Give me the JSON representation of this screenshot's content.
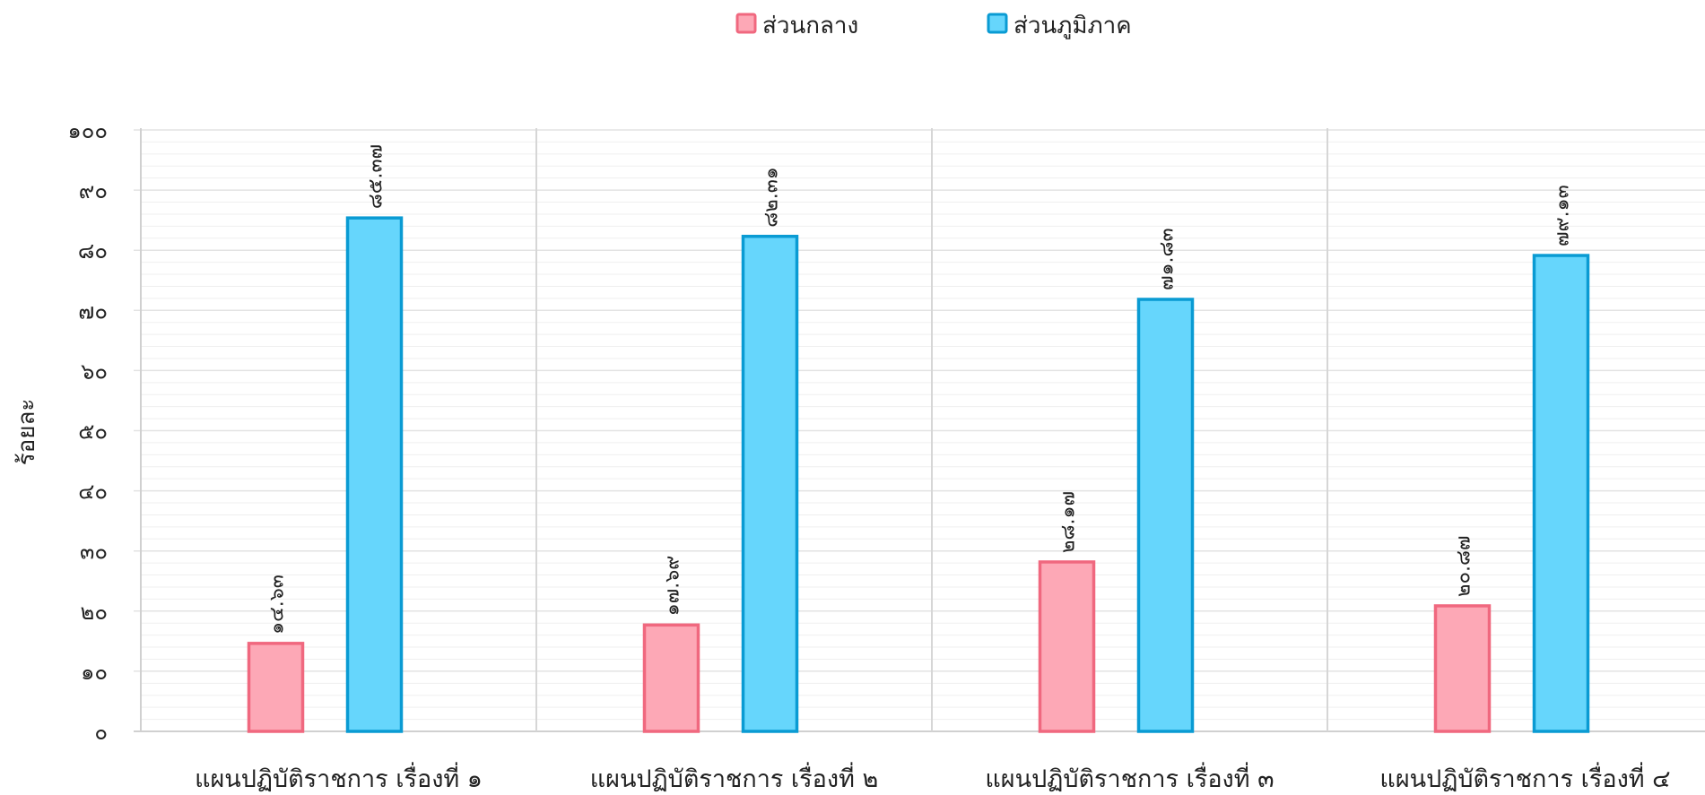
{
  "chart_data": {
    "type": "bar",
    "ylabel": "ร้อยละ",
    "ylim": [
      0,
      100
    ],
    "ytick_values": [
      0,
      10,
      20,
      30,
      40,
      50,
      60,
      70,
      80,
      90,
      100
    ],
    "ytick_labels": [
      "๐",
      "๑๐",
      "๒๐",
      "๓๐",
      "๔๐",
      "๕๐",
      "๖๐",
      "๗๐",
      "๘๐",
      "๙๐",
      "๑๐๐"
    ],
    "categories": [
      "แผนปฏิบัติราชการ เรื่องที่ ๑",
      "แผนปฏิบัติราชการ เรื่องที่ ๒",
      "แผนปฏิบัติราชการ เรื่องที่ ๓",
      "แผนปฏิบัติราชการ เรื่องที่ ๔"
    ],
    "series": [
      {
        "name": "ส่วนกลาง",
        "fill": "#fda8b6",
        "stroke": "#f0687f",
        "values": [
          14.63,
          17.69,
          28.17,
          20.87
        ],
        "labels": [
          "๑๔.๖๓",
          "๑๗.๖๙",
          "๒๘.๑๗",
          "๒๐.๘๗"
        ]
      },
      {
        "name": "ส่วนภูมิภาค",
        "fill": "#66d6fc",
        "stroke": "#0a9bd3",
        "values": [
          85.37,
          82.31,
          71.83,
          79.13
        ],
        "labels": [
          "๘๕.๓๗",
          "๘๒.๓๑",
          "๗๑.๘๓",
          "๗๙.๑๓"
        ]
      }
    ],
    "grid": true,
    "minor_grid": true,
    "legend_position": "top-center",
    "colors": {
      "major_grid": "#e3e3e3",
      "minor_grid": "#efefef",
      "category_divider": "#d6d6d6",
      "axis": "#d0d0d0"
    }
  }
}
